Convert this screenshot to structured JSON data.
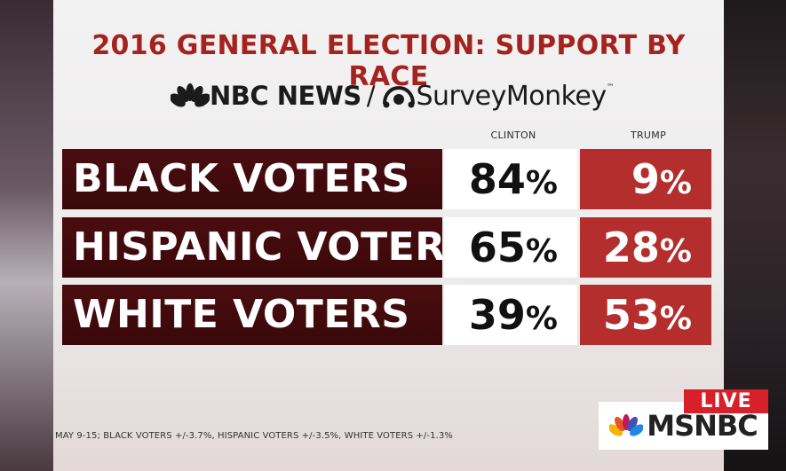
{
  "title": "2016 GENERAL ELECTION: SUPPORT BY RACE",
  "brands": {
    "nbc": "NBC NEWS",
    "separator": "/",
    "surveymonkey": "SurveyMonkey",
    "trademark": "™"
  },
  "chart_data": {
    "type": "table",
    "title": "2016 GENERAL ELECTION: SUPPORT BY RACE",
    "columns": [
      "CLINTON",
      "TRUMP"
    ],
    "rows": [
      {
        "label": "BLACK VOTERS",
        "clinton": 84,
        "trump": 9
      },
      {
        "label": "HISPANIC VOTERS",
        "clinton": 65,
        "trump": 28
      },
      {
        "label": "WHITE VOTERS",
        "clinton": 39,
        "trump": 53
      }
    ],
    "unit": "%",
    "colors": {
      "clinton_cell": "#ffffff",
      "trump_cell": "#b42e2d",
      "label_cell": "#3f0a0d",
      "title": "#a5231f"
    }
  },
  "footnote": "MAY 9-15; BLACK VOTERS +/-3.7%, HISPANIC VOTERS +/-3.5%, WHITE VOTERS +/-1.3%",
  "live_badge": "LIVE",
  "network": "MSNBC"
}
